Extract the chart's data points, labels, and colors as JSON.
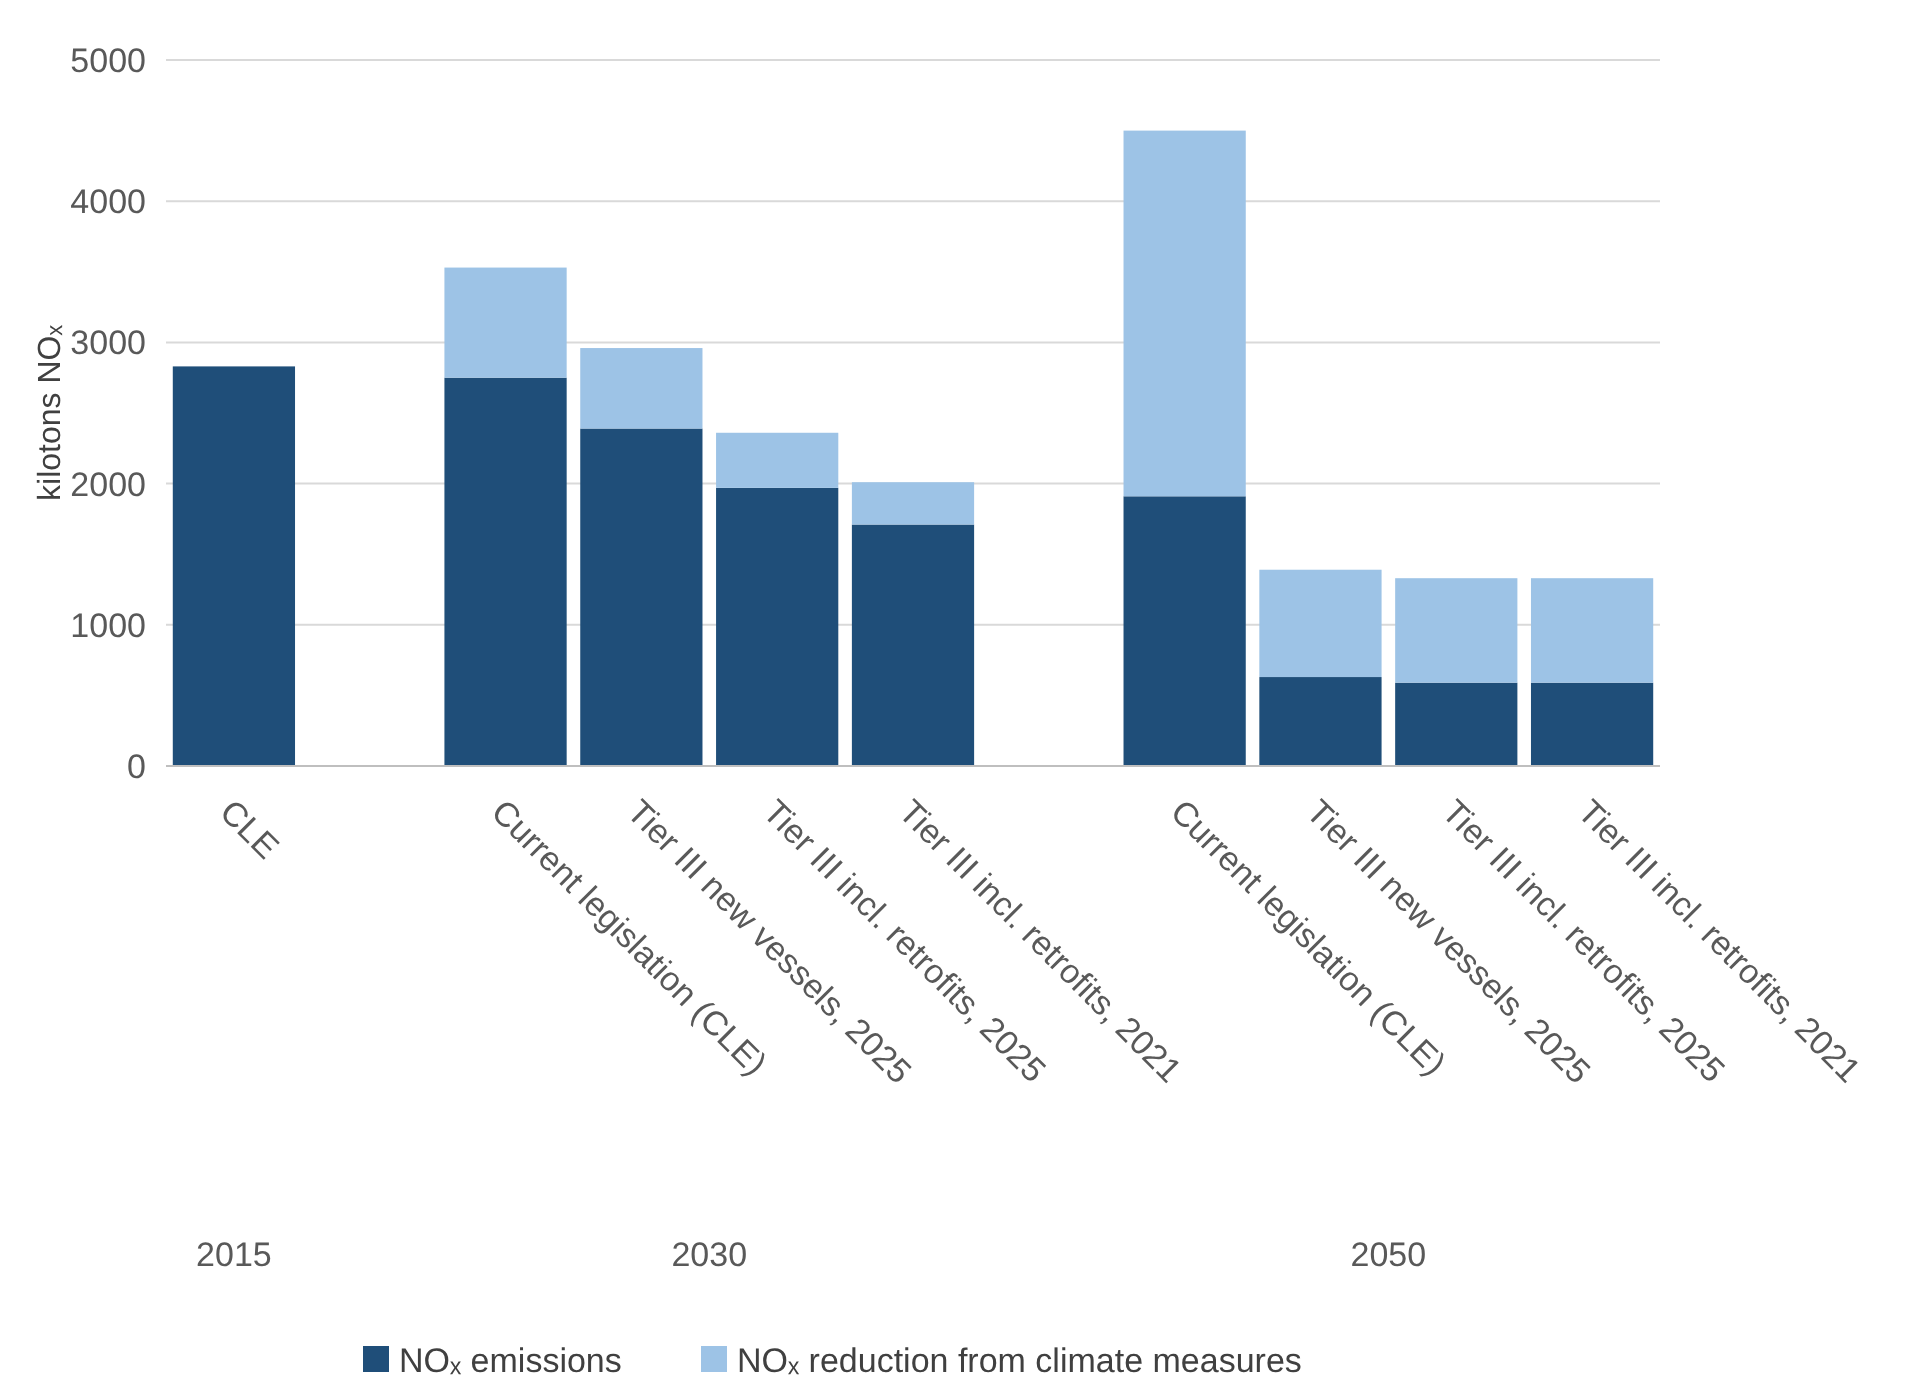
{
  "chart_data": {
    "type": "bar",
    "stacked": true,
    "ylabel": "kilotons NOₓ",
    "categories": [
      "CLE",
      null,
      "Current legislation (CLE)",
      "Tier III new vessels, 2025",
      "Tier III incl. retrofits, 2025",
      "Tier III incl. retrofits, 2021",
      null,
      "Current legislation (CLE)",
      "Tier III new vessels, 2025",
      "Tier III incl. retrofits, 2025",
      "Tier III incl. retrofits, 2021"
    ],
    "series": [
      {
        "name": "NOₓ emissions",
        "color": "#1f4e79",
        "values": [
          2830,
          null,
          2750,
          2390,
          1970,
          1710,
          null,
          1910,
          630,
          590,
          590
        ]
      },
      {
        "name": "NOₓ reduction from climate measures",
        "color": "#9dc3e6",
        "values": [
          null,
          null,
          780,
          570,
          390,
          300,
          null,
          2590,
          760,
          740,
          740
        ]
      }
    ],
    "ylim": [
      0,
      5000
    ],
    "yticks": [
      0,
      1000,
      2000,
      3000,
      4000,
      5000
    ],
    "grid": "y",
    "legend": "bottom",
    "annotations": [
      "2015",
      "2030",
      "2050"
    ]
  }
}
